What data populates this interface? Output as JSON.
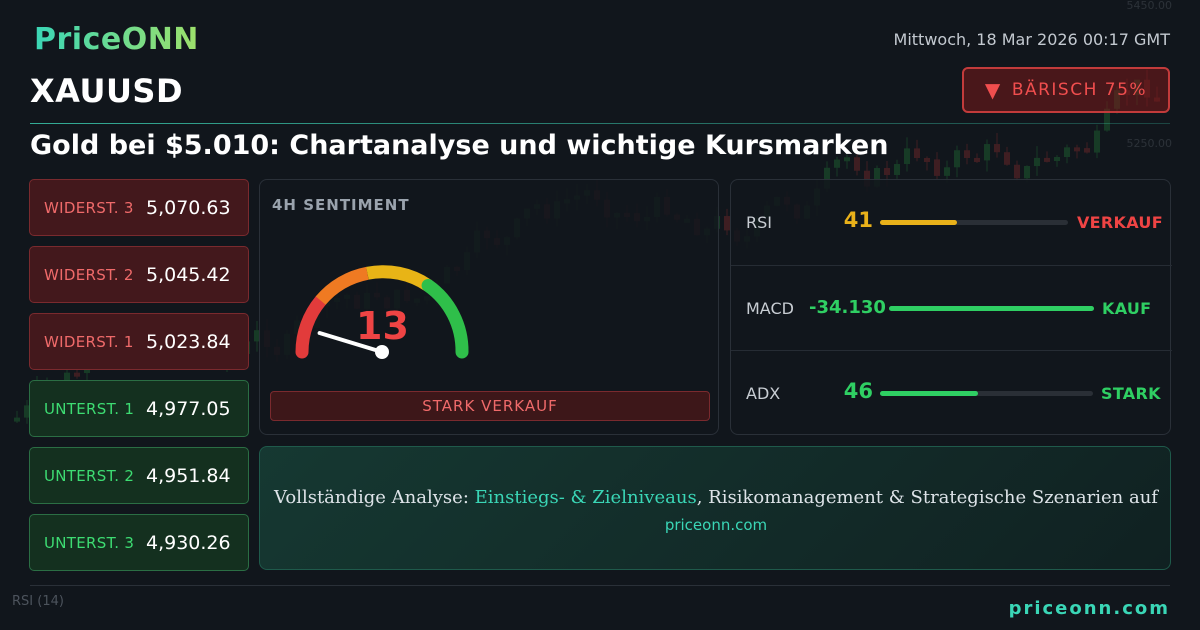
{
  "brand": {
    "logo": "PriceONN",
    "logo_color_start": "#3ad6b6",
    "logo_color_end": "#9ee06a"
  },
  "header": {
    "symbol": "XAUUSD",
    "datetime": "Mittwoch, 18 Mar 2026 00:17 GMT",
    "bias": {
      "icon": "down-triangle-icon",
      "arrow": "▼",
      "label": "BÄRISCH 75%"
    },
    "headline": "Gold bei $5.010: Chartanalyse und wichtige Kursmarken"
  },
  "levels": [
    {
      "type": "resistance",
      "label": "WIDERST. 3",
      "value": "5,070.63"
    },
    {
      "type": "resistance",
      "label": "WIDERST. 2",
      "value": "5,045.42"
    },
    {
      "type": "resistance",
      "label": "WIDERST. 1",
      "value": "5,023.84"
    },
    {
      "type": "support",
      "label": "UNTERST. 1",
      "value": "4,977.05"
    },
    {
      "type": "support",
      "label": "UNTERST. 2",
      "value": "4,951.84"
    },
    {
      "type": "support",
      "label": "UNTERST. 3",
      "value": "4,930.26"
    }
  ],
  "sentiment": {
    "title": "4H SENTIMENT",
    "value": "13",
    "score": 13,
    "label": "STARK VERKAUF"
  },
  "indicators": [
    {
      "name": "RSI",
      "value": "41",
      "level": 0.41,
      "signal": "VERKAUF",
      "value_color": "#e9b11a",
      "bar_color": "#e9b11a",
      "signal_color": "#ef4444"
    },
    {
      "name": "MACD",
      "value": "-34.130",
      "level": 1.0,
      "signal": "KAUF",
      "value_color": "#2fcf63",
      "bar_color": "#2fcf63",
      "signal_color": "#2fcf63"
    },
    {
      "name": "ADX",
      "value": "46",
      "level": 0.46,
      "signal": "STARK",
      "value_color": "#2fcf63",
      "bar_color": "#2fcf63",
      "signal_color": "#2fcf63"
    }
  ],
  "cta": {
    "prefix": "Vollständige Analyse: ",
    "highlight": "Einstiegs- & Zielniveaus",
    "suffix": ", Risikomanagement & Strategische Szenarien auf",
    "link": "priceonn.com"
  },
  "footer": {
    "url": "priceonn.com"
  },
  "background_chart": {
    "price_ticks": [
      "5450.00",
      "5250.00"
    ],
    "indicator_label": "RSI",
    "indicator_period": "(14)"
  }
}
